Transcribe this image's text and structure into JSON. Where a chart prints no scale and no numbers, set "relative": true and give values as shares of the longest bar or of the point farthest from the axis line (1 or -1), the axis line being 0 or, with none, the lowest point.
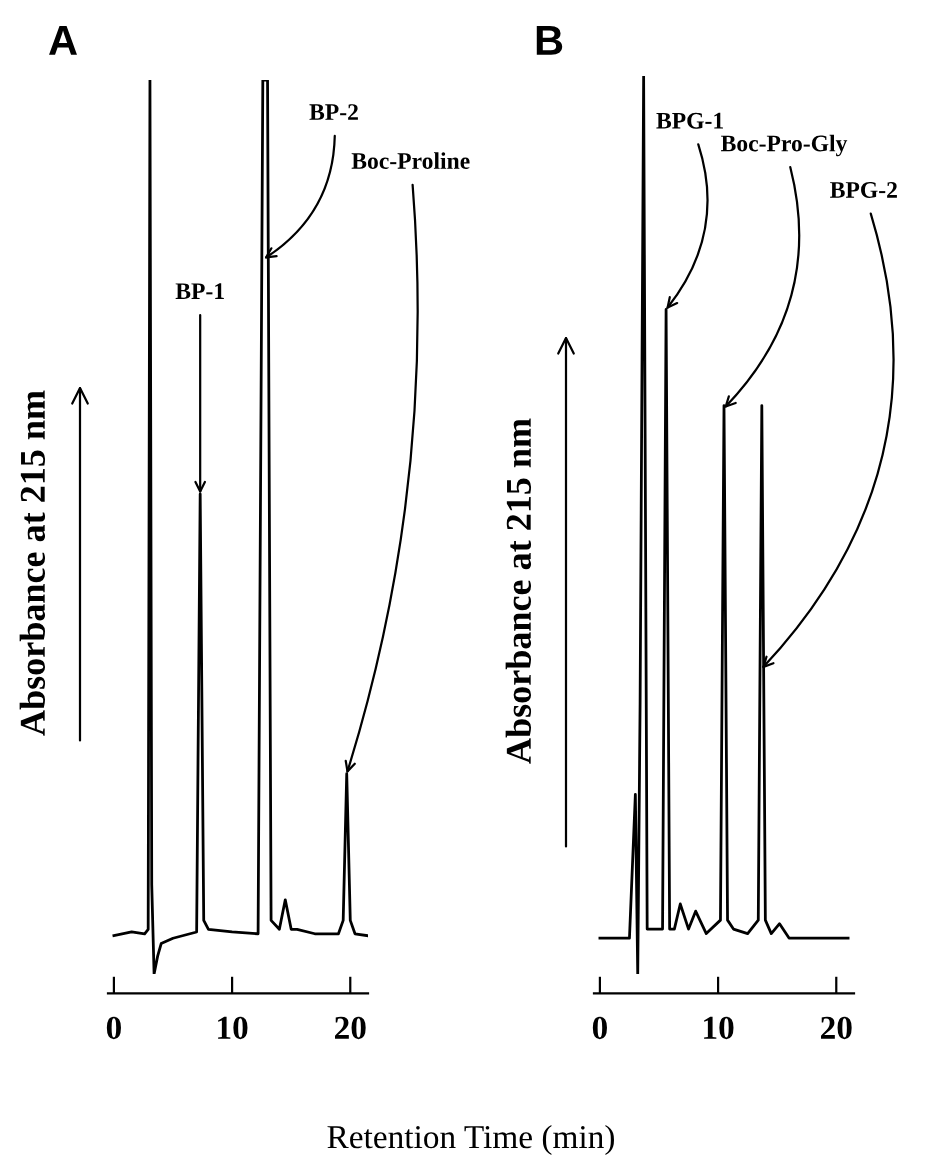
{
  "chart_data": [
    {
      "type": "line",
      "title": "A",
      "ylabel": "Absorbance at 215 nm",
      "xlabel": "Retention Time (min)",
      "relative": true,
      "xlim": [
        -0.5,
        21.5
      ],
      "xticks": [
        0,
        10,
        20
      ],
      "grid": false,
      "legend": false,
      "marker": "none",
      "line_style": "solid",
      "series": [
        {
          "color": "#000000",
          "x": [
            0,
            1.5,
            2.6,
            2.9,
            3.05,
            3.2,
            3.4,
            3.7,
            4.0,
            5.0,
            7.0,
            7.3,
            7.6,
            8.0,
            10.0,
            12.2,
            12.6,
            12.8,
            13.0,
            13.3,
            14.0,
            14.5,
            15.0,
            15.5,
            17.0,
            19.0,
            19.4,
            19.7,
            20.0,
            20.4,
            21.4
          ],
          "values": [
            0.043,
            0.047,
            0.045,
            0.05,
            1.0,
            0.1,
            0.0,
            0.02,
            0.034,
            0.04,
            0.047,
            0.537,
            0.06,
            0.05,
            0.047,
            0.045,
            1.0,
            1.0,
            1.0,
            0.06,
            0.05,
            0.083,
            0.05,
            0.05,
            0.045,
            0.045,
            0.06,
            0.224,
            0.06,
            0.045,
            0.043
          ]
        }
      ],
      "annotations": [
        {
          "text": "BP-1",
          "x": 7.3,
          "y": 0.537
        },
        {
          "text": "BP-2",
          "x": 12.7,
          "y": 0.8
        },
        {
          "text": "Boc-Proline",
          "x": 19.7,
          "y": 0.224
        }
      ]
    },
    {
      "type": "line",
      "title": "B",
      "ylabel": "Absorbance at 215 nm",
      "relative": true,
      "xlim": [
        -0.5,
        21.5
      ],
      "xticks": [
        0,
        10,
        20
      ],
      "grid": false,
      "legend": false,
      "marker": "none",
      "line_style": "solid",
      "series": [
        {
          "color": "#000000",
          "x": [
            0,
            2.5,
            3.0,
            3.2,
            3.4,
            3.7,
            4.0,
            5.3,
            5.6,
            5.9,
            6.3,
            6.8,
            7.5,
            8.1,
            9.0,
            10.2,
            10.5,
            10.8,
            11.3,
            12.5,
            13.4,
            13.7,
            14.0,
            14.5,
            15.2,
            16.0,
            21.0
          ],
          "values": [
            0.04,
            0.04,
            0.2,
            0.0,
            0.3,
            1.0,
            0.05,
            0.05,
            0.74,
            0.05,
            0.05,
            0.078,
            0.05,
            0.07,
            0.045,
            0.06,
            0.633,
            0.06,
            0.05,
            0.045,
            0.06,
            0.633,
            0.06,
            0.045,
            0.056,
            0.04,
            0.04
          ]
        }
      ],
      "annotations": [
        {
          "text": "BPG-1",
          "x": 5.6,
          "y": 0.74
        },
        {
          "text": "Boc-Pro-Gly",
          "x": 10.5,
          "y": 0.63
        },
        {
          "text": "BPG-2",
          "x": 13.7,
          "y": 0.34
        }
      ]
    }
  ]
}
